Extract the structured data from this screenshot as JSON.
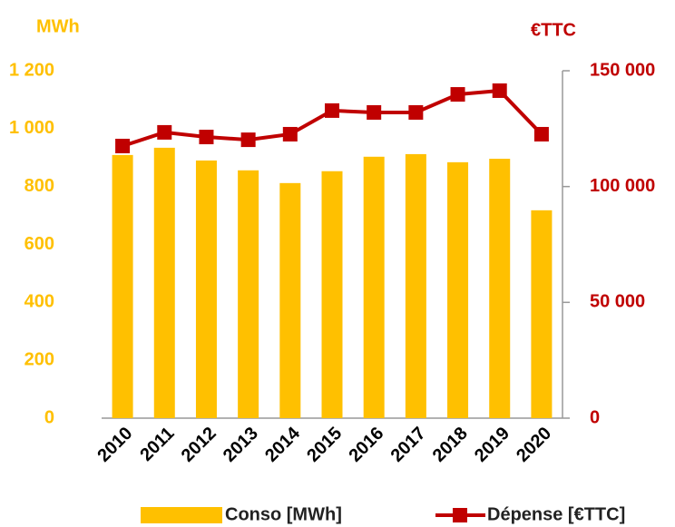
{
  "chart_data": {
    "type": "bar",
    "y_label": "MWh",
    "y2_label": "€TTC",
    "categories": [
      "2010",
      "2011",
      "2012",
      "2013",
      "2014",
      "2015",
      "2016",
      "2017",
      "2018",
      "2019",
      "2020"
    ],
    "series": [
      {
        "name": "Conso [MWh]",
        "type": "bar",
        "color": "#ffc000",
        "values": [
          909,
          934,
          890,
          856,
          812,
          853,
          903,
          912,
          884,
          896,
          718
        ]
      },
      {
        "name": "Dépense [€TTC]",
        "type": "line",
        "axis": "y2",
        "color": "#c00000",
        "values": [
          117500,
          123400,
          121400,
          120200,
          122600,
          132800,
          132000,
          132000,
          139800,
          141400,
          122600
        ]
      }
    ],
    "ylim": [
      0,
      1200
    ],
    "yticks": [
      0,
      200,
      400,
      600,
      800,
      {
        "value": 1000,
        "label": "1 000"
      },
      {
        "value": 1200,
        "label": "1 200"
      }
    ],
    "y2lim": [
      0,
      150000
    ],
    "y2ticks": [
      0,
      {
        "value": 50000,
        "label": "50 000"
      },
      {
        "value": 100000,
        "label": "100 000"
      },
      {
        "value": 150000,
        "label": "150 000"
      }
    ],
    "grid": false
  }
}
